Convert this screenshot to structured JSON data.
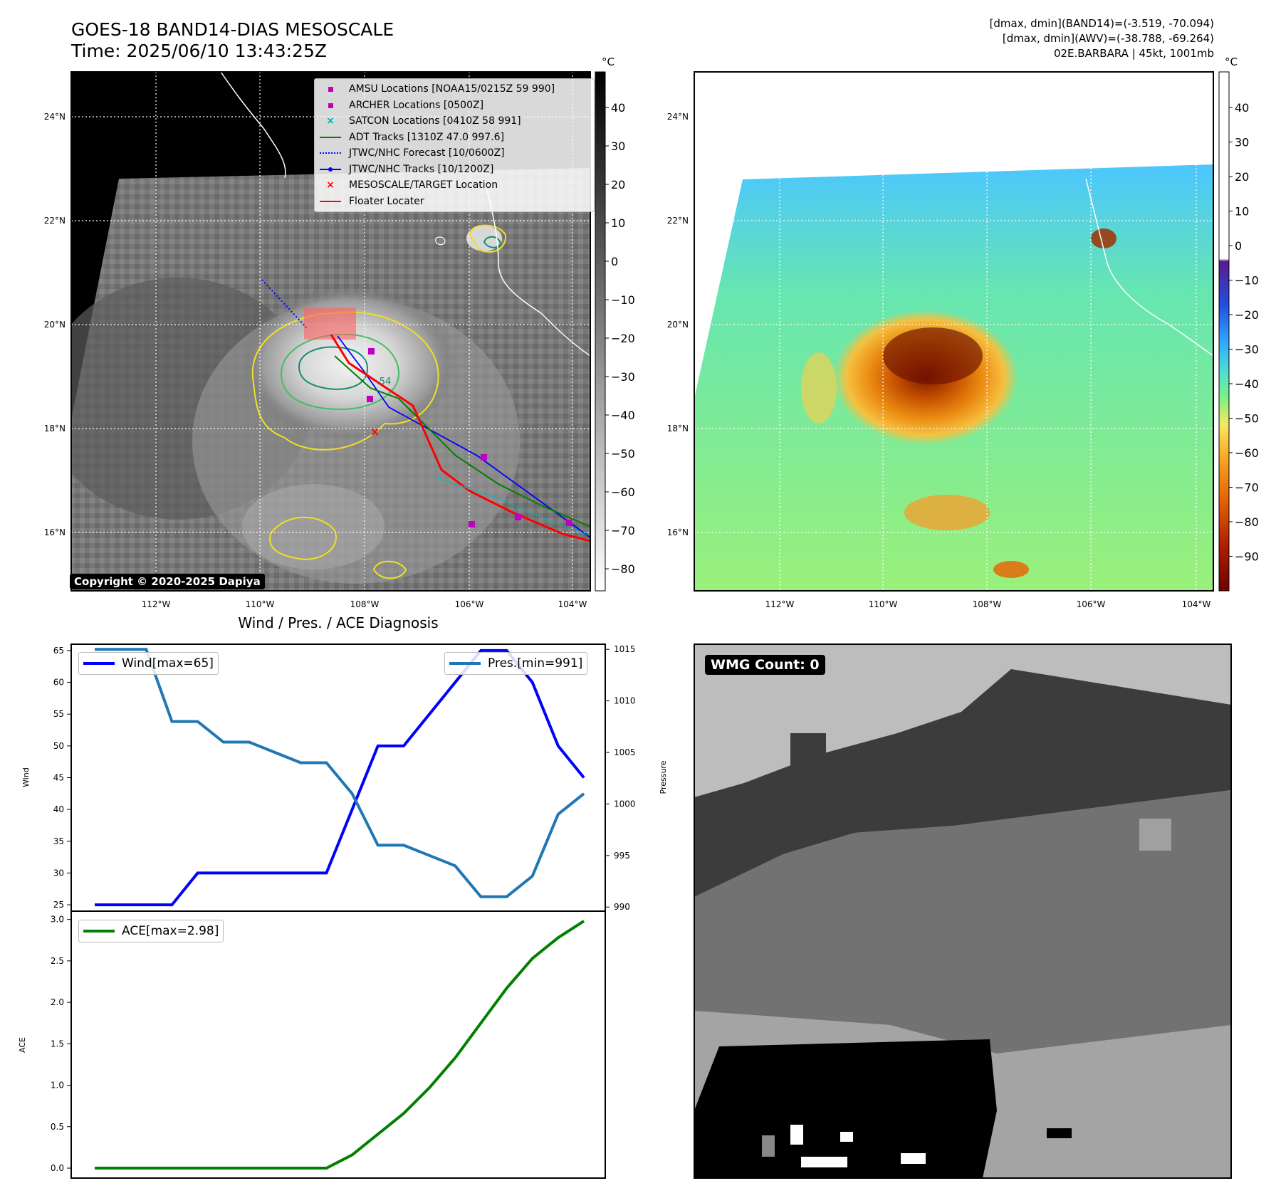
{
  "header": {
    "title_line1": "GOES-18 BAND14-DIAS MESOSCALE",
    "title_line2": "Time: 2025/06/10 13:43:25Z",
    "info_line1": "[dmax, dmin](BAND14)=(-3.519, -70.094)",
    "info_line2": "[dmax, dmin](AWV)=(-38.788, -69.264)",
    "info_line3": "02E.BARBARA | 45kt, 1001mb"
  },
  "map": {
    "lon_ticks": [
      "112°W",
      "110°W",
      "108°W",
      "106°W",
      "104°W"
    ],
    "lat_ticks": [
      "24°N",
      "22°N",
      "20°N",
      "18°N",
      "16°N"
    ],
    "colorbar_unit": "°C",
    "band14_colorbar_ticks": [
      "40",
      "30",
      "20",
      "10",
      "0",
      "−10",
      "−20",
      "−30",
      "−40",
      "−50",
      "−60",
      "−70",
      "−80"
    ],
    "awv_colorbar_ticks": [
      "40",
      "30",
      "20",
      "10",
      "0",
      "−10",
      "−20",
      "−30",
      "−40",
      "−50",
      "−60",
      "−70",
      "−80",
      "−90"
    ],
    "copyright": "Copyright © 2020-2025 Dapiya",
    "contour_label": "-54",
    "legend": [
      {
        "label": "AMSU Locations [NOAA15/0215Z 59 990]",
        "color": "#c000c0",
        "marker": "square"
      },
      {
        "label": "ARCHER Locations [0500Z]",
        "color": "#c000c0",
        "marker": "square"
      },
      {
        "label": "SATCON Locations [0410Z 58 991]",
        "color": "#00b0b0",
        "marker": "x"
      },
      {
        "label": "ADT Tracks [1310Z 47.0 997.6]",
        "color": "#008000",
        "marker": "line"
      },
      {
        "label": "JTWC/NHC Forecast [10/0600Z]",
        "color": "#0000ff",
        "marker": "dotted"
      },
      {
        "label": "JTWC/NHC Tracks [10/1200Z]",
        "color": "#0000ff",
        "marker": "line-dot"
      },
      {
        "label": "MESOSCALE/TARGET Location",
        "color": "#ff0000",
        "marker": "x"
      },
      {
        "label": "Floater Locater",
        "color": "#ff0000",
        "marker": "line"
      }
    ]
  },
  "wmg": {
    "label": "WMG Count: 0"
  },
  "chart_data": [
    {
      "type": "line",
      "title": "Wind / Pres. / ACE Diagnosis",
      "ylabel": "Wind",
      "ylabel_right": "Pressure",
      "x": [
        0,
        1,
        2,
        3,
        4,
        5,
        6,
        7,
        8,
        9,
        10,
        11,
        12,
        13,
        14,
        15,
        16,
        17,
        18,
        19
      ],
      "ylim": [
        24,
        66
      ],
      "ylim_right": [
        989.6,
        1015.5
      ],
      "yticks": [
        25,
        30,
        35,
        40,
        45,
        50,
        55,
        60,
        65
      ],
      "yticks_right": [
        990,
        995,
        1000,
        1005,
        1010,
        1015
      ],
      "series": [
        {
          "name": "Wind[max=65]",
          "axis": "left",
          "color": "#0000ff",
          "values": [
            25,
            25,
            25,
            25,
            30,
            30,
            30,
            30,
            30,
            30,
            40,
            50,
            50,
            55,
            60,
            65,
            65,
            60,
            50,
            45
          ]
        },
        {
          "name": "Pres.[min=991]",
          "axis": "right",
          "color": "#1f77b4",
          "values": [
            1015,
            1015,
            1015,
            1008,
            1008,
            1006,
            1006,
            1005,
            1004,
            1004,
            1001,
            996,
            996,
            995,
            994,
            991,
            991,
            993,
            999,
            1001
          ]
        }
      ]
    },
    {
      "type": "line",
      "ylabel": "ACE",
      "x": [
        0,
        1,
        2,
        3,
        4,
        5,
        6,
        7,
        8,
        9,
        10,
        11,
        12,
        13,
        14,
        15,
        16,
        17,
        18,
        19
      ],
      "ylim": [
        -0.12,
        3.1
      ],
      "yticks": [
        "0.0",
        "0.5",
        "1.0",
        "1.5",
        "2.0",
        "2.5",
        "3.0"
      ],
      "series": [
        {
          "name": "ACE[max=2.98]",
          "axis": "left",
          "color": "#008000",
          "values": [
            0,
            0,
            0,
            0,
            0,
            0,
            0,
            0,
            0,
            0,
            0.16,
            0.41,
            0.66,
            0.97,
            1.33,
            1.75,
            2.17,
            2.53,
            2.78,
            2.98
          ]
        }
      ]
    }
  ]
}
